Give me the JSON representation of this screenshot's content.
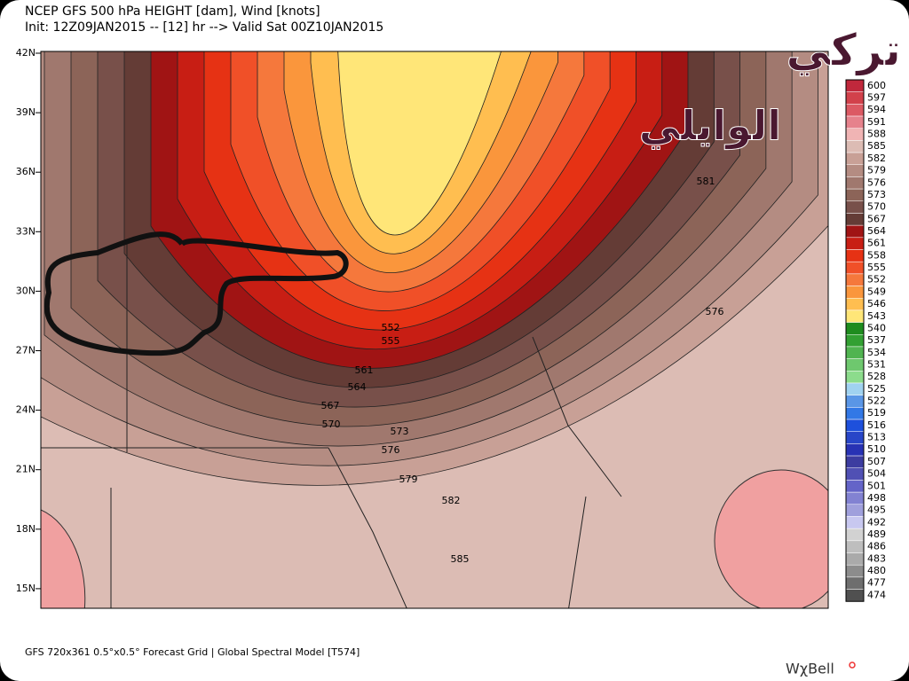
{
  "header": {
    "title": "NCEP GFS 500 hPa HEIGHT [dam], Wind [knots]",
    "subtitle": "Init: 12Z09JAN2015 -- [12] hr --> Valid Sat 00Z10JAN2015"
  },
  "latitude_labels": [
    "42N",
    "39N",
    "36N",
    "33N",
    "30N",
    "27N",
    "24N",
    "21N",
    "18N",
    "15N"
  ],
  "contour_labels": [
    "581",
    "576",
    "552",
    "555",
    "561",
    "564",
    "567",
    "570",
    "573",
    "576",
    "579",
    "582",
    "585"
  ],
  "colorbar": {
    "levels": [
      600,
      597,
      594,
      591,
      588,
      585,
      582,
      579,
      576,
      573,
      570,
      567,
      564,
      561,
      558,
      555,
      552,
      549,
      546,
      543,
      540,
      537,
      534,
      531,
      528,
      525,
      522,
      519,
      516,
      513,
      510,
      507,
      504,
      501,
      498,
      495,
      492,
      489,
      486,
      483,
      480,
      477,
      474
    ],
    "colors": [
      "#c0283c",
      "#d2414b",
      "#dc5a64",
      "#e6828c",
      "#f0b4b4",
      "#dcbcb4",
      "#c8a096",
      "#b48c82",
      "#a0786e",
      "#8c6458",
      "#78504a",
      "#643c36",
      "#a01414",
      "#c81e14",
      "#e63214",
      "#f05028",
      "#f5783c",
      "#fa963c",
      "#ffbe50",
      "#ffe678",
      "#1e8c1e",
      "#32a032",
      "#50b450",
      "#6ec86e",
      "#8cdc8c",
      "#a0d2f0",
      "#5a96e6",
      "#3278e6",
      "#1e50dc",
      "#2846c8",
      "#2832b4",
      "#3c3ca0",
      "#5050b4",
      "#6464c8",
      "#8282d2",
      "#a0a0dc",
      "#c8c8f0",
      "#d2d2d2",
      "#bebebe",
      "#aaaaaa",
      "#8c8c8c",
      "#6e6e6e",
      "#505050"
    ]
  },
  "footer": {
    "grid_info": "GFS 720x361 0.5°x0.5° Forecast Grid | Global Spectral Model [T574]",
    "brand": "WχBell"
  },
  "watermark": {
    "line1": "تركي",
    "line2": "الوايلي"
  }
}
